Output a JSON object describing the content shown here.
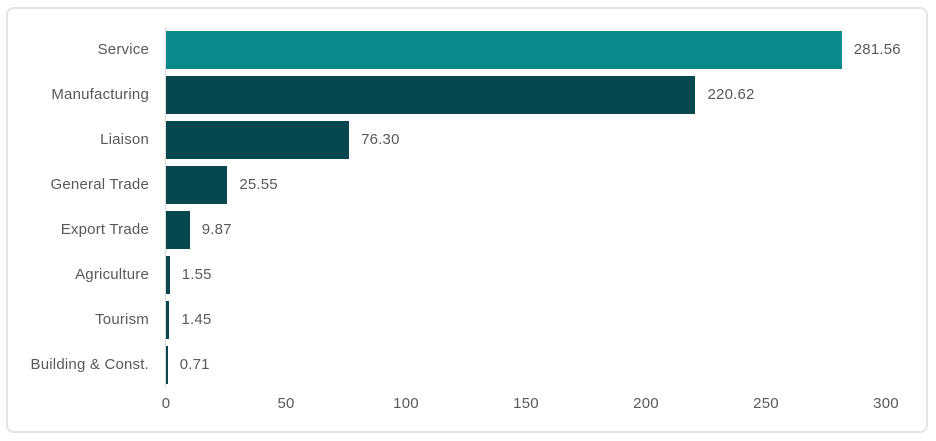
{
  "chart_data": {
    "type": "bar",
    "orientation": "horizontal",
    "title": "",
    "xlabel": "",
    "ylabel": "",
    "categories": [
      "Service",
      "Manufacturing",
      "Liaison",
      "General Trade",
      "Export Trade",
      "Agriculture",
      "Tourism",
      "Building & Const."
    ],
    "values": [
      281.56,
      220.62,
      76.3,
      25.55,
      9.87,
      1.55,
      1.45,
      0.71
    ],
    "value_labels": [
      "281.56",
      "220.62",
      "76.30",
      "25.55",
      "9.87",
      "1.55",
      "1.45",
      "0.71"
    ],
    "x_ticks": [
      "0",
      "50",
      "100",
      "150",
      "200",
      "250",
      "300"
    ],
    "xlim": [
      0,
      300
    ],
    "grid": false,
    "legend": false,
    "data_labels": true,
    "colors": {
      "first_bar": "#0a8a8b",
      "other_bars": "#07484e",
      "label_text": "#595959",
      "axis_line": "#d9d9d9",
      "panel_border": "#e3e3e3",
      "background": "#ffffff"
    }
  }
}
